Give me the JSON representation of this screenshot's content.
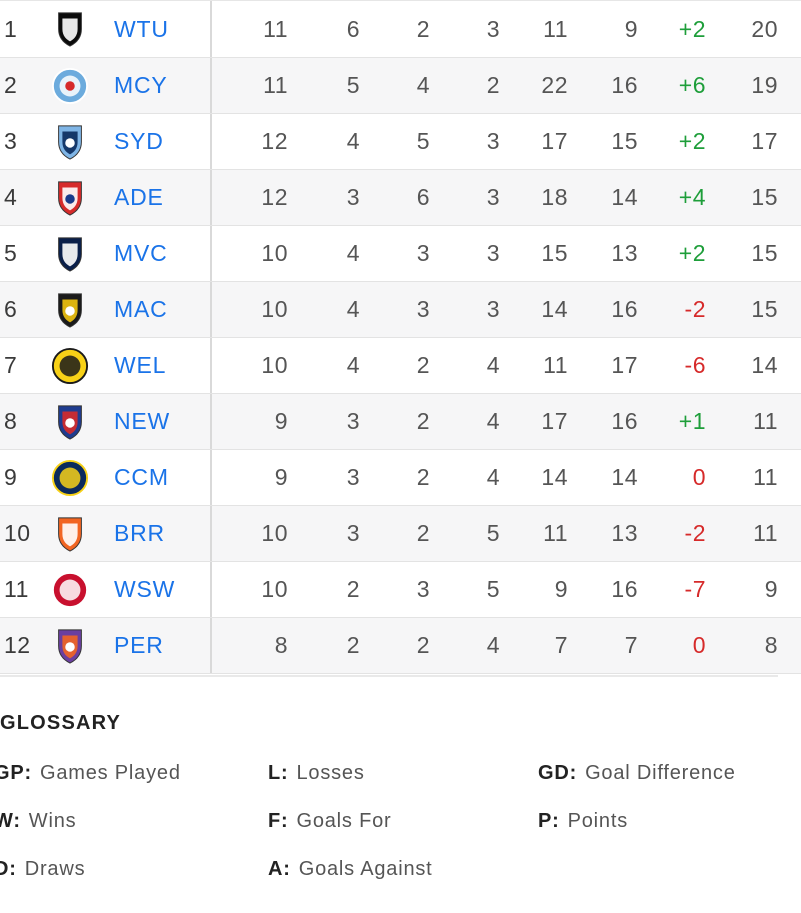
{
  "standings": [
    {
      "rank": "1",
      "team": "WTU",
      "gp": "11",
      "w": "6",
      "d": "2",
      "l": "3",
      "f": "11",
      "a": "9",
      "gd": "+2",
      "p": "20",
      "logo": "western-united-crest-icon",
      "logo_colors": [
        "#0b0b0b",
        "#ffffff"
      ],
      "logo_shape": "shield"
    },
    {
      "rank": "2",
      "team": "MCY",
      "gp": "11",
      "w": "5",
      "d": "4",
      "l": "2",
      "f": "22",
      "a": "16",
      "gd": "+6",
      "p": "19",
      "logo": "melbourne-city-crest-icon",
      "logo_colors": [
        "#6cabdd",
        "#ffffff",
        "#d62a2a"
      ],
      "logo_shape": "circle"
    },
    {
      "rank": "3",
      "team": "SYD",
      "gp": "12",
      "w": "4",
      "d": "5",
      "l": "3",
      "f": "17",
      "a": "15",
      "gd": "+2",
      "p": "17",
      "logo": "sydney-fc-crest-icon",
      "logo_colors": [
        "#7fb5e6",
        "#0a2a5c",
        "#ffffff"
      ],
      "logo_shape": "shield"
    },
    {
      "rank": "4",
      "team": "ADE",
      "gp": "12",
      "w": "3",
      "d": "6",
      "l": "3",
      "f": "18",
      "a": "14",
      "gd": "+4",
      "p": "15",
      "logo": "adelaide-united-crest-icon",
      "logo_colors": [
        "#d62a2a",
        "#ffffff",
        "#1a3a8a"
      ],
      "logo_shape": "shield"
    },
    {
      "rank": "5",
      "team": "MVC",
      "gp": "10",
      "w": "4",
      "d": "3",
      "l": "3",
      "f": "15",
      "a": "13",
      "gd": "+2",
      "p": "15",
      "logo": "melbourne-victory-crest-icon",
      "logo_colors": [
        "#0a1f4a",
        "#ffffff"
      ],
      "logo_shape": "shield"
    },
    {
      "rank": "6",
      "team": "MAC",
      "gp": "10",
      "w": "4",
      "d": "3",
      "l": "3",
      "f": "14",
      "a": "16",
      "gd": "-2",
      "p": "15",
      "logo": "macarthur-fc-crest-icon",
      "logo_colors": [
        "#1a1a1a",
        "#f1c40f",
        "#ffffff"
      ],
      "logo_shape": "shield"
    },
    {
      "rank": "7",
      "team": "WEL",
      "gp": "10",
      "w": "4",
      "d": "2",
      "l": "4",
      "f": "11",
      "a": "17",
      "gd": "-6",
      "p": "14",
      "logo": "wellington-phoenix-crest-icon",
      "logo_colors": [
        "#f7d117",
        "#1a1a1a"
      ],
      "logo_shape": "circle"
    },
    {
      "rank": "8",
      "team": "NEW",
      "gp": "9",
      "w": "3",
      "d": "2",
      "l": "4",
      "f": "17",
      "a": "16",
      "gd": "+1",
      "p": "11",
      "logo": "newcastle-jets-crest-icon",
      "logo_colors": [
        "#1f3c8f",
        "#d62a2a",
        "#ffffff"
      ],
      "logo_shape": "shield"
    },
    {
      "rank": "9",
      "team": "CCM",
      "gp": "9",
      "w": "3",
      "d": "2",
      "l": "4",
      "f": "14",
      "a": "14",
      "gd": "0",
      "p": "11",
      "logo": "central-coast-mariners-crest-icon",
      "logo_colors": [
        "#0b2a5c",
        "#f7d117"
      ],
      "logo_shape": "circle"
    },
    {
      "rank": "10",
      "team": "BRR",
      "gp": "10",
      "w": "3",
      "d": "2",
      "l": "5",
      "f": "11",
      "a": "13",
      "gd": "-2",
      "p": "11",
      "logo": "brisbane-roar-crest-icon",
      "logo_colors": [
        "#f26522",
        "#ffffff"
      ],
      "logo_shape": "shield"
    },
    {
      "rank": "11",
      "team": "WSW",
      "gp": "10",
      "w": "2",
      "d": "3",
      "l": "5",
      "f": "9",
      "a": "16",
      "gd": "-7",
      "p": "9",
      "logo": "western-sydney-wanderers-crest-icon",
      "logo_colors": [
        "#c8102e",
        "#ffffff"
      ],
      "logo_shape": "circle"
    },
    {
      "rank": "12",
      "team": "PER",
      "gp": "8",
      "w": "2",
      "d": "2",
      "l": "4",
      "f": "7",
      "a": "7",
      "gd": "0",
      "p": "8",
      "logo": "perth-glory-crest-icon",
      "logo_colors": [
        "#6a3fa0",
        "#f26522",
        "#ffffff"
      ],
      "logo_shape": "shield"
    }
  ],
  "colors": {
    "team_link": "#1a73e8",
    "gd_positive": "#1e9e3a",
    "gd_negative": "#d62a2a"
  },
  "glossary": {
    "title": "GLOSSARY",
    "items": [
      {
        "key": "GP:",
        "label": "Games Played"
      },
      {
        "key": "W:",
        "label": "Wins"
      },
      {
        "key": "D:",
        "label": "Draws"
      },
      {
        "key": "L:",
        "label": "Losses"
      },
      {
        "key": "F:",
        "label": "Goals For"
      },
      {
        "key": "A:",
        "label": "Goals Against"
      },
      {
        "key": "GD:",
        "label": "Goal Difference"
      },
      {
        "key": "P:",
        "label": "Points"
      }
    ]
  }
}
